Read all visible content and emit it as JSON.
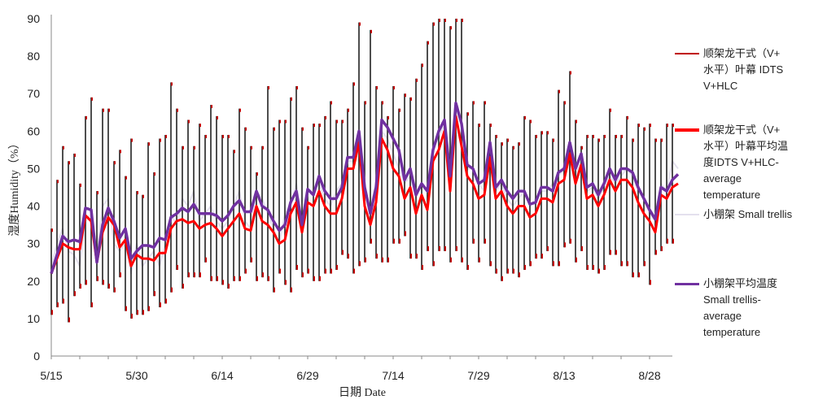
{
  "chart_data": {
    "type": "line",
    "title": "",
    "xlabel": "日期 Date",
    "ylabel": "湿度Humidity（%）",
    "ylim": [
      0,
      90
    ],
    "yticks": [
      0,
      10,
      20,
      30,
      40,
      50,
      60,
      70,
      80,
      90
    ],
    "x_start": "5/15",
    "xtick_labels": [
      "5/15",
      "5/30",
      "6/14",
      "6/29",
      "7/14",
      "7/29",
      "8/13",
      "8/28"
    ],
    "xtick_day_index": [
      0,
      15,
      30,
      45,
      60,
      75,
      90,
      105
    ],
    "grid": false,
    "legend_position": "right",
    "series": [
      {
        "name": "顺架龙干式（V+水平）叶幕 IDTS V+HLC",
        "color": "#c00000",
        "kind": "range",
        "max": [
          34,
          47,
          56,
          52,
          54,
          46,
          64,
          69,
          44,
          66,
          66,
          52,
          55,
          48,
          58,
          44,
          43,
          57,
          49,
          58,
          59,
          73,
          66,
          56,
          63,
          56,
          62,
          59,
          67,
          64,
          59,
          59,
          55,
          66,
          61,
          56,
          49,
          56,
          72,
          61,
          63,
          63,
          69,
          72,
          61,
          56,
          62,
          62,
          64,
          68,
          63,
          63,
          66,
          73,
          89,
          68,
          87,
          72,
          68,
          64,
          72,
          66,
          70,
          69,
          74,
          78,
          84,
          89,
          90,
          90,
          88,
          90,
          90,
          65,
          68,
          62,
          68,
          62,
          59,
          57,
          58,
          56,
          57,
          64,
          63,
          59,
          60,
          60,
          58,
          71,
          68,
          76,
          63,
          56,
          59,
          59,
          58,
          59,
          66,
          59,
          59,
          64,
          58,
          62,
          61,
          62,
          58,
          58,
          62,
          62
        ],
        "min": [
          11,
          13,
          14,
          9,
          16,
          18,
          19,
          13,
          20,
          19,
          18,
          17,
          21,
          12,
          10,
          11,
          11,
          12,
          16,
          13,
          14,
          17,
          23,
          18,
          21,
          21,
          21,
          25,
          20,
          20,
          19,
          18,
          20,
          20,
          22,
          25,
          20,
          21,
          20,
          17,
          22,
          19,
          17,
          23,
          21,
          22,
          20,
          20,
          22,
          22,
          23,
          27,
          26,
          22,
          24,
          25,
          30,
          26,
          25,
          25,
          30,
          30,
          32,
          26,
          26,
          23,
          28,
          24,
          28,
          28,
          25,
          28,
          25,
          23,
          30,
          25,
          30,
          24,
          22,
          20,
          22,
          22,
          21,
          23,
          24,
          26,
          26,
          28,
          24,
          24,
          29,
          30,
          25,
          28,
          23,
          23,
          22,
          23,
          27,
          27,
          24,
          24,
          21,
          21,
          24,
          19,
          27,
          28,
          30,
          30
        ]
      },
      {
        "name": "顺架龙干式（V+水平）叶幕平均温度IDTS V+HLC-average temperature",
        "color": "#ff0000",
        "kind": "line",
        "values": [
          22,
          26,
          30,
          29,
          28.5,
          28.5,
          37.5,
          36,
          25,
          33,
          37,
          35,
          29,
          31,
          24,
          27,
          26,
          26,
          25.5,
          27.5,
          27.5,
          34,
          36,
          36.5,
          35.5,
          36,
          34,
          35,
          35.5,
          34,
          32,
          34,
          36,
          38,
          34,
          33.5,
          40,
          36,
          35,
          33,
          30,
          31,
          38,
          41,
          33,
          41,
          40,
          44,
          40,
          38,
          38,
          42,
          50,
          50,
          57,
          40,
          35,
          41,
          58,
          55,
          50,
          48,
          42,
          45,
          38,
          43,
          39,
          52,
          55,
          60,
          44,
          64,
          56,
          48,
          46,
          42,
          43,
          53,
          42,
          44,
          40,
          38,
          40,
          40,
          37,
          38,
          42,
          42,
          41,
          46,
          47,
          54,
          46,
          51,
          42,
          43,
          40,
          43,
          47,
          44,
          47,
          47,
          45,
          41,
          38,
          36,
          33,
          43,
          42,
          45,
          46
        ]
      },
      {
        "name": "小棚架 Small trellis",
        "color": "#e4e0ee",
        "kind": "line",
        "values": [
          24,
          30,
          34,
          28,
          27,
          24,
          36,
          38,
          28,
          40,
          42,
          30,
          28,
          30,
          22,
          30,
          24,
          26,
          28,
          24,
          30,
          38,
          35,
          42,
          40,
          44,
          36,
          38,
          40,
          36,
          34,
          36,
          40,
          44,
          36,
          34,
          44,
          42,
          38,
          34,
          30,
          38,
          40,
          46,
          36,
          44,
          44,
          46,
          42,
          40,
          44,
          46,
          52,
          52,
          58,
          42,
          40,
          46,
          60,
          58,
          54,
          50,
          46,
          48,
          42,
          46,
          44,
          56,
          58,
          62,
          48,
          64,
          58,
          50,
          50,
          46,
          44,
          55,
          44,
          46,
          42,
          40,
          42,
          44,
          40,
          42,
          44,
          44,
          46,
          48,
          50,
          55,
          48,
          52,
          44,
          45,
          42,
          45,
          48,
          46,
          48,
          50,
          48,
          44,
          42,
          38,
          36,
          46,
          44,
          52,
          50
        ]
      },
      {
        "name": "小棚架平均温度Small trellis-average temperature",
        "color": "#7030a0",
        "kind": "line",
        "values": [
          22,
          27,
          32,
          30.5,
          31,
          30.5,
          39.5,
          39,
          25,
          35,
          39.5,
          36,
          31.5,
          34,
          26,
          28,
          29.5,
          29.5,
          29,
          31.5,
          31,
          37,
          38,
          39.5,
          38.5,
          40.5,
          38,
          38,
          38,
          37.5,
          36,
          37.5,
          40,
          41.5,
          38.5,
          38.5,
          44,
          40,
          39,
          36,
          33.5,
          35,
          41,
          44,
          35,
          44.5,
          43,
          48,
          44,
          42,
          42,
          45,
          53,
          53,
          60,
          45,
          38,
          45,
          63,
          61,
          58,
          55,
          47,
          50,
          43,
          46,
          44,
          55,
          60,
          63,
          48,
          67.5,
          62,
          51,
          50,
          46,
          47,
          57,
          45,
          47,
          44,
          42,
          44,
          44,
          40.5,
          41,
          45,
          45,
          44,
          49,
          50,
          57,
          50,
          54,
          45,
          46,
          43,
          46,
          50,
          47,
          50,
          50,
          49,
          45,
          42,
          39,
          36.5,
          45,
          44,
          47,
          48.5
        ]
      }
    ]
  },
  "legend": [
    {
      "lines": [
        "顺架龙干式（V+",
        "水平）叶幕 IDTS",
        "V+HLC"
      ]
    },
    {
      "lines": [
        "顺架龙干式（V+",
        "水平）叶幕平均温",
        "度IDTS V+HLC-",
        "average",
        "temperature"
      ]
    },
    {
      "lines": [
        "小棚架 Small trellis"
      ]
    },
    {
      "lines": [
        "小棚架平均温度",
        "Small trellis-",
        "average",
        "temperature"
      ]
    }
  ]
}
